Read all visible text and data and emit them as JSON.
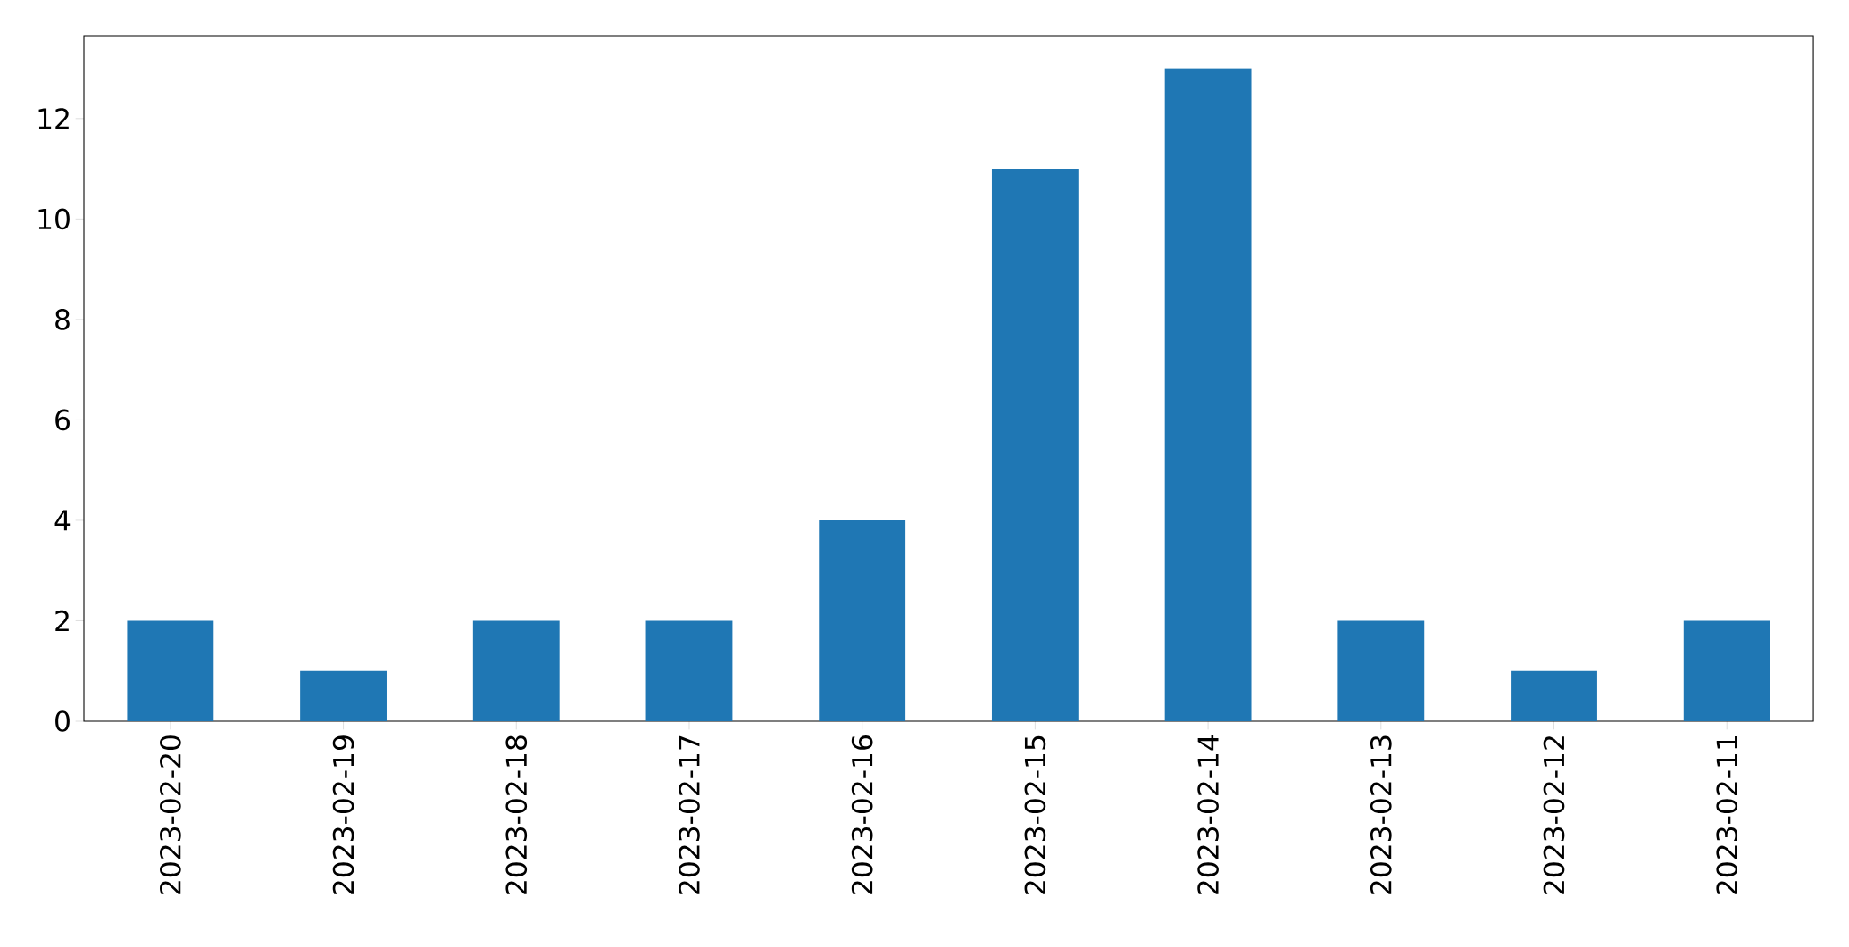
{
  "chart_data": {
    "type": "bar",
    "categories": [
      "2023-02-20",
      "2023-02-19",
      "2023-02-18",
      "2023-02-17",
      "2023-02-16",
      "2023-02-15",
      "2023-02-14",
      "2023-02-13",
      "2023-02-12",
      "2023-02-11"
    ],
    "values": [
      2,
      1,
      2,
      2,
      4,
      11,
      13,
      2,
      1,
      2
    ],
    "color": "#1f77b4",
    "ylim": [
      0,
      13.65
    ],
    "yticks": [
      0,
      2,
      4,
      6,
      8,
      10,
      12
    ],
    "grid": false
  }
}
